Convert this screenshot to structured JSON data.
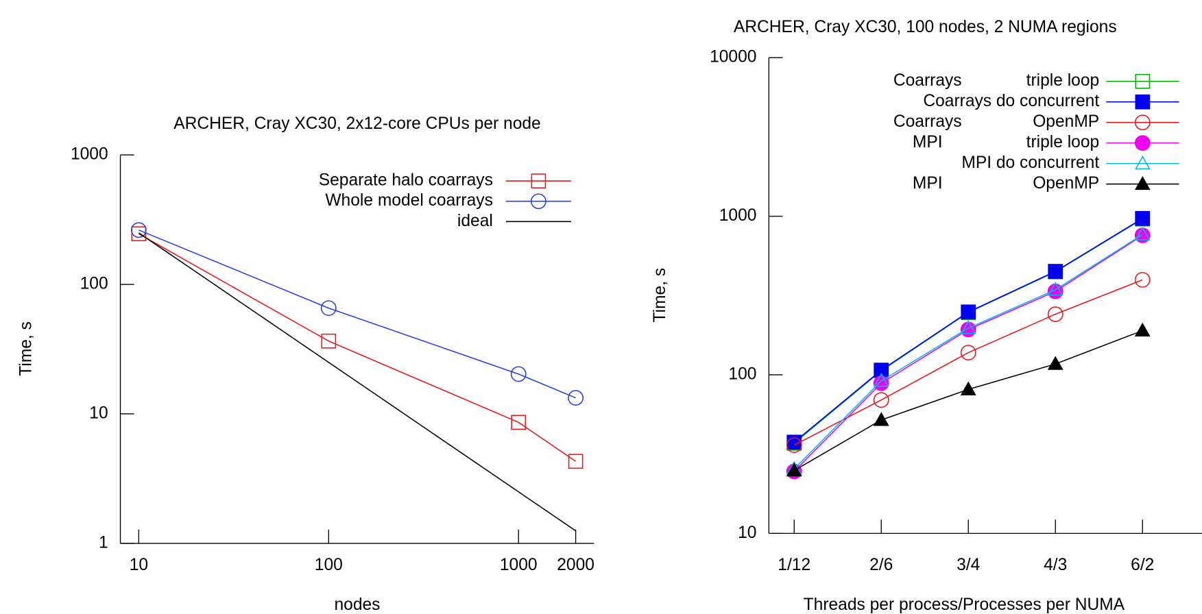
{
  "chart_data": [
    {
      "type": "line",
      "title": "ARCHER, Cray XC30, 2x12-core CPUs per node",
      "x_label": "nodes",
      "y_label": "Time, s",
      "xlog": true,
      "ylog": true,
      "xlim": [
        8,
        2500
      ],
      "ylim": [
        1,
        1000
      ],
      "xticks": [
        10,
        100,
        1000,
        2000
      ],
      "yticks": [
        1,
        10,
        100,
        1000
      ],
      "legend": "upper right",
      "series": [
        {
          "name": "Separate halo coarrays",
          "color": "#e41a1c",
          "marker": "square",
          "filled": false,
          "x": [
            10,
            100,
            1000,
            2000
          ],
          "values": [
            246,
            36.5,
            8.6,
            4.3
          ]
        },
        {
          "name": "Whole model coarrays",
          "color": "#2b3ee0",
          "marker": "circle",
          "filled": false,
          "x": [
            10,
            100,
            1000,
            2000
          ],
          "values": [
            263,
            65.6,
            20.3,
            13.3
          ]
        },
        {
          "name": "ideal",
          "color": "#000000",
          "marker": "none",
          "filled": false,
          "x": [
            10,
            2000
          ],
          "values": [
            250,
            1.25
          ]
        }
      ]
    },
    {
      "type": "line",
      "title": "ARCHER, Cray XC30, 100 nodes, 2 NUMA regions",
      "x_label": "Threads per process/Processes per NUMA",
      "y_label": "Time, s",
      "ylog": true,
      "ylim": [
        10,
        10000
      ],
      "yticks": [
        10,
        100,
        1000,
        10000
      ],
      "legend": "upper right",
      "categories": [
        "1/12",
        "2/6",
        "3/4",
        "4/3",
        "6/2"
      ],
      "series": [
        {
          "name": [
            "Coarrays",
            "triple loop"
          ],
          "color": "#00b000",
          "marker": "square",
          "filled": false,
          "values": [
            37,
            106,
            247,
            446,
            960
          ]
        },
        {
          "name": [
            "Coarrays do concurrent"
          ],
          "color": "#0000ee",
          "marker": "square",
          "filled": true,
          "values": [
            37.6,
            107,
            249,
            449,
            968
          ]
        },
        {
          "name": [
            "Coarrays",
            "OpenMP"
          ],
          "color": "#e41a1c",
          "marker": "circle",
          "filled": false,
          "values": [
            36,
            69.4,
            138,
            241,
            397
          ]
        },
        {
          "name": [
            "MPI",
            "triple loop"
          ],
          "color": "#ee00ee",
          "marker": "circle",
          "filled": true,
          "values": [
            24.6,
            88.5,
            193,
            336,
            757
          ]
        },
        {
          "name": [
            "MPI do concurrent"
          ],
          "color": "#00b8e8",
          "marker": "triangle",
          "filled": false,
          "values": [
            25.5,
            91.5,
            197,
            344,
            766
          ]
        },
        {
          "name": [
            "MPI",
            "OpenMP"
          ],
          "color": "#000000",
          "marker": "triangle",
          "filled": true,
          "values": [
            24.9,
            51.9,
            80.9,
            117,
            190
          ]
        }
      ]
    }
  ]
}
